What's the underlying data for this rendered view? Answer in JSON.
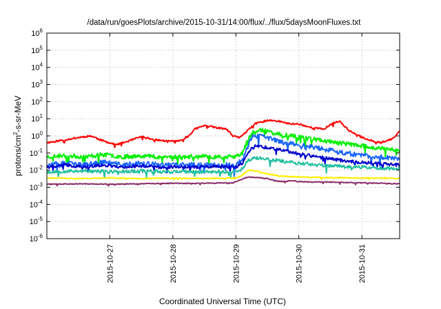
{
  "chart_data": {
    "type": "line",
    "title": "/data/run/goesPlots/archive/2015-10-31/14:00/flux/../flux/5daysMoonFluxes.txt",
    "xlabel": "Coordinated Universal Time (UTC)",
    "ylabel_parts": {
      "prefix": "protons/cm",
      "sup": "2",
      "suffix": "-s-sr-MeV"
    },
    "yscale": "log",
    "ylim": [
      1e-06,
      1000000.0
    ],
    "xlim": [
      0.0,
      5.6
    ],
    "grid": true,
    "legend": "none",
    "x_tick_labels": [
      "2015-10-27",
      "2015-10-28",
      "2015-10-29",
      "2015-10-30",
      "2015-10-31"
    ],
    "x_tick_positions": [
      1.0,
      2.0,
      3.0,
      4.0,
      5.0
    ],
    "y_ticks": [
      {
        "value": 1e-06,
        "exp": "-6"
      },
      {
        "value": 1e-05,
        "exp": "-5"
      },
      {
        "value": 0.0001,
        "exp": "-4"
      },
      {
        "value": 0.001,
        "exp": "-3"
      },
      {
        "value": 0.01,
        "exp": "-2"
      },
      {
        "value": 0.1,
        "exp": "-1"
      },
      {
        "value": 1,
        "exp": "0"
      },
      {
        "value": 10,
        "exp": "1"
      },
      {
        "value": 100,
        "exp": "2"
      },
      {
        "value": 1000,
        "exp": "3"
      },
      {
        "value": 10000,
        "exp": "4"
      },
      {
        "value": 100000,
        "exp": "5"
      },
      {
        "value": 1000000,
        "exp": "6"
      }
    ],
    "y_tick_base": "10",
    "series": [
      {
        "color": "#ff0000",
        "noise": 0.1,
        "seed": 11,
        "x": [
          0.0,
          0.3,
          0.5,
          0.7,
          0.9,
          1.1,
          1.3,
          1.5,
          1.7,
          1.9,
          2.1,
          2.25,
          2.35,
          2.5,
          2.7,
          2.85,
          2.95,
          3.05,
          3.15,
          3.3,
          3.5,
          3.7,
          3.85,
          4.0,
          4.2,
          4.4,
          4.55,
          4.65,
          4.8,
          4.95,
          5.1,
          5.3,
          5.5,
          5.6
        ],
        "y": [
          0.4,
          0.6,
          0.8,
          1.0,
          0.5,
          0.3,
          0.5,
          0.9,
          0.6,
          0.5,
          0.5,
          1.0,
          2.5,
          4.0,
          3.0,
          2.5,
          1.0,
          0.8,
          1.5,
          5.0,
          8.0,
          7.0,
          5.0,
          5.0,
          3.0,
          2.5,
          6.0,
          7.0,
          2.0,
          1.0,
          0.6,
          0.4,
          0.7,
          2.0
        ]
      },
      {
        "color": "#00ee00",
        "noise": 0.25,
        "seed": 23,
        "x": [
          0.0,
          0.3,
          0.6,
          0.9,
          1.2,
          1.5,
          1.8,
          2.1,
          2.4,
          2.7,
          3.0,
          3.1,
          3.2,
          3.25,
          3.35,
          3.5,
          3.7,
          4.0,
          4.3,
          4.6,
          4.9,
          5.2,
          5.6
        ],
        "y": [
          0.06,
          0.07,
          0.06,
          0.08,
          0.06,
          0.07,
          0.06,
          0.06,
          0.06,
          0.06,
          0.06,
          0.1,
          0.6,
          1.5,
          2.2,
          1.8,
          1.2,
          0.9,
          0.6,
          0.4,
          0.3,
          0.2,
          0.15
        ]
      },
      {
        "color": "#1a66ff",
        "noise": 0.28,
        "seed": 37,
        "x": [
          0.0,
          0.3,
          0.6,
          0.9,
          1.2,
          1.5,
          1.8,
          2.1,
          2.4,
          2.7,
          3.0,
          3.1,
          3.2,
          3.25,
          3.35,
          3.5,
          3.7,
          4.0,
          4.3,
          4.6,
          4.9,
          5.2,
          5.6
        ],
        "y": [
          0.02,
          0.025,
          0.02,
          0.03,
          0.02,
          0.025,
          0.02,
          0.02,
          0.02,
          0.02,
          0.02,
          0.04,
          0.3,
          0.8,
          1.0,
          0.8,
          0.45,
          0.3,
          0.2,
          0.12,
          0.08,
          0.06,
          0.05
        ]
      },
      {
        "color": "#0000cc",
        "noise": 0.18,
        "seed": 41,
        "x": [
          0.0,
          0.3,
          0.6,
          0.9,
          1.2,
          1.5,
          1.8,
          2.1,
          2.4,
          2.7,
          3.0,
          3.1,
          3.2,
          3.3,
          3.45,
          3.7,
          4.0,
          4.3,
          4.6,
          4.9,
          5.2,
          5.6
        ],
        "y": [
          0.015,
          0.02,
          0.015,
          0.02,
          0.015,
          0.018,
          0.015,
          0.016,
          0.015,
          0.016,
          0.015,
          0.025,
          0.12,
          0.25,
          0.22,
          0.15,
          0.09,
          0.06,
          0.04,
          0.03,
          0.025,
          0.02
        ]
      },
      {
        "color": "#22c0a0",
        "noise": 0.2,
        "seed": 53,
        "x": [
          0.0,
          0.5,
          1.0,
          1.5,
          2.0,
          2.5,
          3.0,
          3.1,
          3.2,
          3.3,
          3.5,
          3.7,
          4.0,
          4.3,
          4.6,
          5.0,
          5.3,
          5.6
        ],
        "y": [
          0.008,
          0.009,
          0.008,
          0.009,
          0.008,
          0.008,
          0.008,
          0.012,
          0.04,
          0.05,
          0.045,
          0.035,
          0.025,
          0.02,
          0.017,
          0.015,
          0.013,
          0.012
        ]
      },
      {
        "color": "#ffee00",
        "noise": 0.06,
        "seed": 61,
        "x": [
          0.0,
          0.5,
          1.0,
          1.5,
          2.0,
          2.5,
          3.0,
          3.1,
          3.2,
          3.3,
          3.5,
          3.7,
          4.0,
          4.3,
          4.6,
          5.0,
          5.6
        ],
        "y": [
          0.0035,
          0.0032,
          0.0035,
          0.0032,
          0.0034,
          0.0033,
          0.0034,
          0.005,
          0.01,
          0.009,
          0.006,
          0.0045,
          0.004,
          0.0038,
          0.0036,
          0.0035,
          0.0033
        ]
      },
      {
        "color": "#8b2d6b",
        "noise": 0.05,
        "seed": 71,
        "x": [
          0.0,
          0.5,
          1.0,
          1.5,
          2.0,
          2.5,
          2.95,
          3.1,
          3.2,
          3.3,
          3.5,
          3.6,
          3.7,
          3.8,
          3.9,
          4.0,
          4.5,
          5.0,
          5.6
        ],
        "y": [
          0.0015,
          0.0016,
          0.0015,
          0.0016,
          0.0017,
          0.0017,
          0.0018,
          0.003,
          0.004,
          0.0038,
          0.0032,
          0.0025,
          0.0022,
          0.0022,
          0.0025,
          0.0021,
          0.002,
          0.0018,
          0.0016
        ]
      }
    ]
  }
}
